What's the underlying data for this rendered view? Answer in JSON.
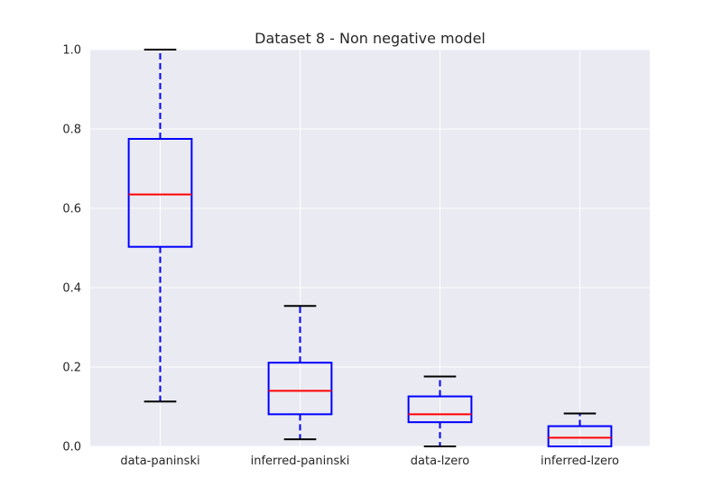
{
  "chart_data": {
    "type": "box",
    "title": "Dataset 8 - Non negative model",
    "xlabel": "",
    "ylabel": "",
    "ylim": [
      0,
      1.0
    ],
    "yticks": [
      0.0,
      0.2,
      0.4,
      0.6,
      0.8,
      1.0
    ],
    "ytick_labels": [
      "0.0",
      "0.2",
      "0.4",
      "0.6",
      "0.8",
      "1.0"
    ],
    "grid": true,
    "categories": [
      "data-paninski",
      "inferred-paninski",
      "data-lzero",
      "inferred-lzero"
    ],
    "boxes": [
      {
        "whisker_low": 0.113,
        "q1": 0.503,
        "median": 0.635,
        "q3": 0.775,
        "whisker_high": 1.0
      },
      {
        "whisker_low": 0.018,
        "q1": 0.081,
        "median": 0.14,
        "q3": 0.211,
        "whisker_high": 0.354
      },
      {
        "whisker_low": 0.0,
        "q1": 0.061,
        "median": 0.081,
        "q3": 0.126,
        "whisker_high": 0.176
      },
      {
        "whisker_low": 0.0,
        "q1": 0.0,
        "median": 0.022,
        "q3": 0.051,
        "whisker_high": 0.083
      }
    ],
    "colors": {
      "background": "#eaeaf2",
      "grid": "#ffffff",
      "box": "#0000ff",
      "whisker": "#0000ff",
      "median": "#ff0000",
      "cap": "#000000"
    }
  }
}
